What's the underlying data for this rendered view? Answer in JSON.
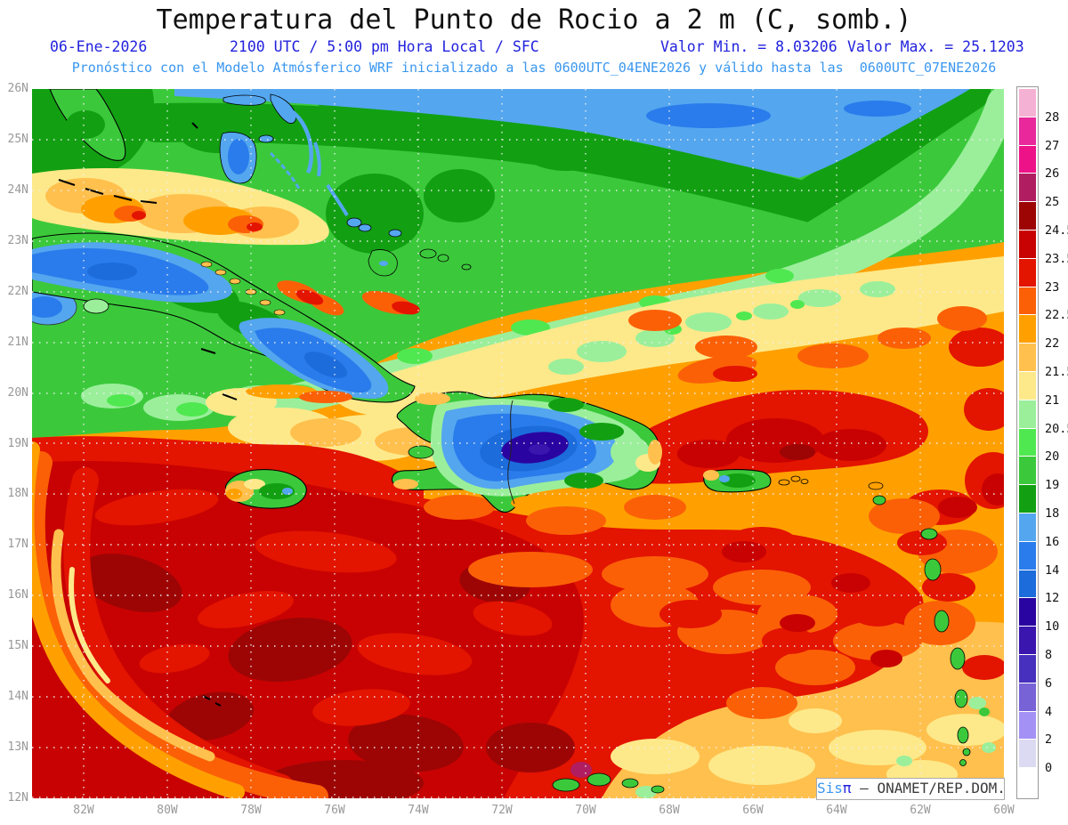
{
  "header": {
    "title": "Temperatura del Punto de Rocio a 2 m (C, somb.)",
    "date": "06-Ene-2026",
    "time": "2100 UTC / 5:00 pm Hora Local / SFC",
    "valor_min": "Valor Min. = 8.03206",
    "valor_max": "Valor Max. = 25.1203",
    "forecast": "Pronóstico con el Modelo Atmósferico WRF inicializado a las 0600UTC_04ENE2026 y válido hasta las  0600UTC_07ENE2026"
  },
  "axes": {
    "x_ticks": [
      "82W",
      "80W",
      "78W",
      "76W",
      "74W",
      "72W",
      "70W",
      "68W",
      "66W",
      "64W",
      "62W",
      "60W"
    ],
    "y_ticks": [
      "26N",
      "25N",
      "24N",
      "23N",
      "22N",
      "21N",
      "20N",
      "19N",
      "18N",
      "17N",
      "16N",
      "15N",
      "14N",
      "13N",
      "12N"
    ]
  },
  "colorbar": {
    "labels_top_to_bottom": [
      "28",
      "27",
      "26",
      "25",
      "24.5",
      "23.5",
      "23",
      "22.5",
      "22",
      "21.5",
      "21",
      "20.5",
      "20",
      "19",
      "18",
      "16",
      "14",
      "12",
      "10",
      "8",
      "6",
      "4",
      "2",
      "0"
    ],
    "colors_top_to_bottom": [
      "#f5b1d4",
      "#e8289b",
      "#ee1289",
      "#b01d60",
      "#9d0505",
      "#c80202",
      "#e31400",
      "#fb6007",
      "#ffa000",
      "#ffc04d",
      "#fde98a",
      "#9bef9b",
      "#50e850",
      "#3bc93b",
      "#12a012",
      "#54a6ef",
      "#2a7cec",
      "#1c6cdb",
      "#2a04a0",
      "#3a15ae",
      "#4730bd",
      "#7762d6",
      "#a391f5",
      "#dcdaf2",
      "#ffffff"
    ]
  },
  "watermark": {
    "sis": "Sis",
    "pi": "π",
    "org": " – ONAMET/REP.DOM."
  },
  "chart_data": {
    "type": "heatmap",
    "variable": "Temperatura del Punto de Rocio a 2 m",
    "units": "C (sombreado)",
    "model": "WRF",
    "valid": "06-Ene-2026 2100 UTC / 5:00 pm Hora Local / SFC",
    "valor_min": 8.03206,
    "valor_max": 25.1203,
    "lon_range": [
      "83.2W",
      "60W"
    ],
    "lat_range": [
      "12N",
      "26N"
    ],
    "levels_c": [
      0,
      2,
      4,
      6,
      8,
      10,
      12,
      14,
      16,
      18,
      19,
      20,
      20.5,
      21,
      21.5,
      22,
      22.5,
      23,
      23.5,
      24.5,
      25,
      26,
      27,
      28
    ],
    "palette": {
      "gt28": "#f5b1d4",
      "r27": "#e8289b",
      "r26": "#ee1289",
      "r25": "#b01d60",
      "r24_5": "#9d0505",
      "r23_5": "#c80202",
      "r23": "#e31400",
      "r22_5": "#fb6007",
      "r22": "#ffa000",
      "r21_5": "#ffc04d",
      "r21": "#fde98a",
      "r20_5": "#9bef9b",
      "r20": "#50e850",
      "r19": "#3bc93b",
      "r18": "#12a012",
      "b16": "#54a6ef",
      "b14": "#2a7cec",
      "b12": "#1c6cdb",
      "b10": "#2a04a0",
      "b8": "#3a15ae",
      "b6": "#4730bd",
      "b4": "#7762d6",
      "b2": "#a391f5",
      "b0": "#dcdaf2",
      "lt0": "#ffffff"
    },
    "features": [
      "Banda azul (16-18C) a lo largo del borde norte, franjas verde oscuro/verde/verde claro hacia el noreste",
      "Parche cálido amarillo-naranja al noroeste de Cuba (Golfo)",
      "Cuba con interior azul (14-16C) al oeste y sureste, base verde",
      "La Española con núcleo azul marino (8-12C) rodeado de azul y verde; frontera Haití/RD visible",
      "Jamaica verde con oeste naranja; Puerto Rico verde; Antillas Menores verdes",
      "Gran masa roja/rojo oscuro (23.5-24.5C) dominando el suroeste con espirales naranjas; punto magenta ~25C",
      "Sureste naranja moteado de rojo, más claro (21.5-22C) hacia la esquina inferior derecha"
    ]
  }
}
